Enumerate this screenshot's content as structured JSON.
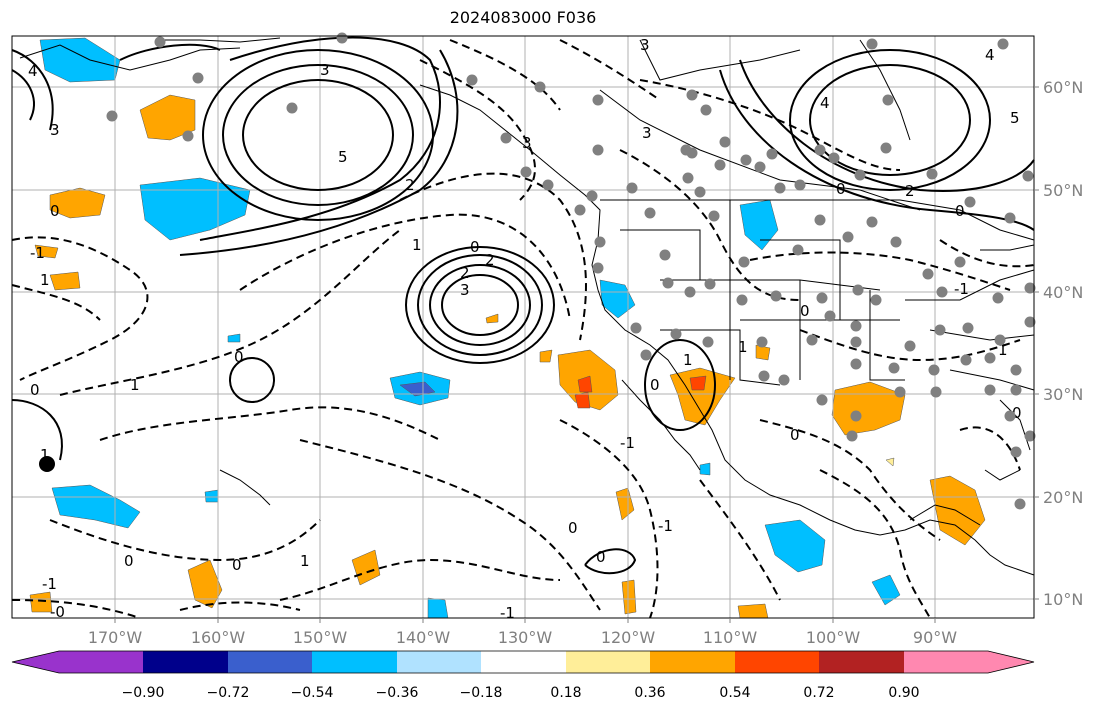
{
  "title": "2024083000 F036",
  "lon_labels": [
    "170°W",
    "160°W",
    "150°W",
    "140°W",
    "130°W",
    "120°W",
    "110°W",
    "100°W",
    "90°W"
  ],
  "lat_labels": [
    "60°N",
    "50°N",
    "40°N",
    "30°N",
    "20°N",
    "10°N"
  ],
  "colorbar": {
    "colors": [
      "#9933cc",
      "#00008b",
      "#3a5fcd",
      "#00bfff",
      "#b0e2ff",
      "#ffffff",
      "#ffee99",
      "#ffa500",
      "#ff4500",
      "#b22222",
      "#ff88b0"
    ],
    "tick_labels": [
      "−0.90",
      "−0.72",
      "−0.54",
      "−0.36",
      "−0.18",
      "0.18",
      "0.36",
      "0.54",
      "0.72",
      "0.90"
    ]
  },
  "contour_labels": [
    "4",
    "3",
    "5",
    "3",
    "3",
    "3",
    "4",
    "5",
    "2",
    "4",
    "1",
    "2",
    "0",
    "2",
    "3",
    "1",
    "0",
    "0",
    "2",
    "0",
    "-1",
    "1",
    "0",
    "1",
    "0",
    "0",
    "-1",
    "0",
    "0",
    "-1",
    "1",
    "-1",
    "-0",
    "1",
    "0",
    "-1",
    "0",
    "0",
    "-1",
    "1",
    "3",
    "1",
    "0",
    "0"
  ],
  "colors": {
    "contour": "#000000",
    "grid": "#b0b0b0",
    "land_line": "#000000",
    "station": "#808080"
  }
}
